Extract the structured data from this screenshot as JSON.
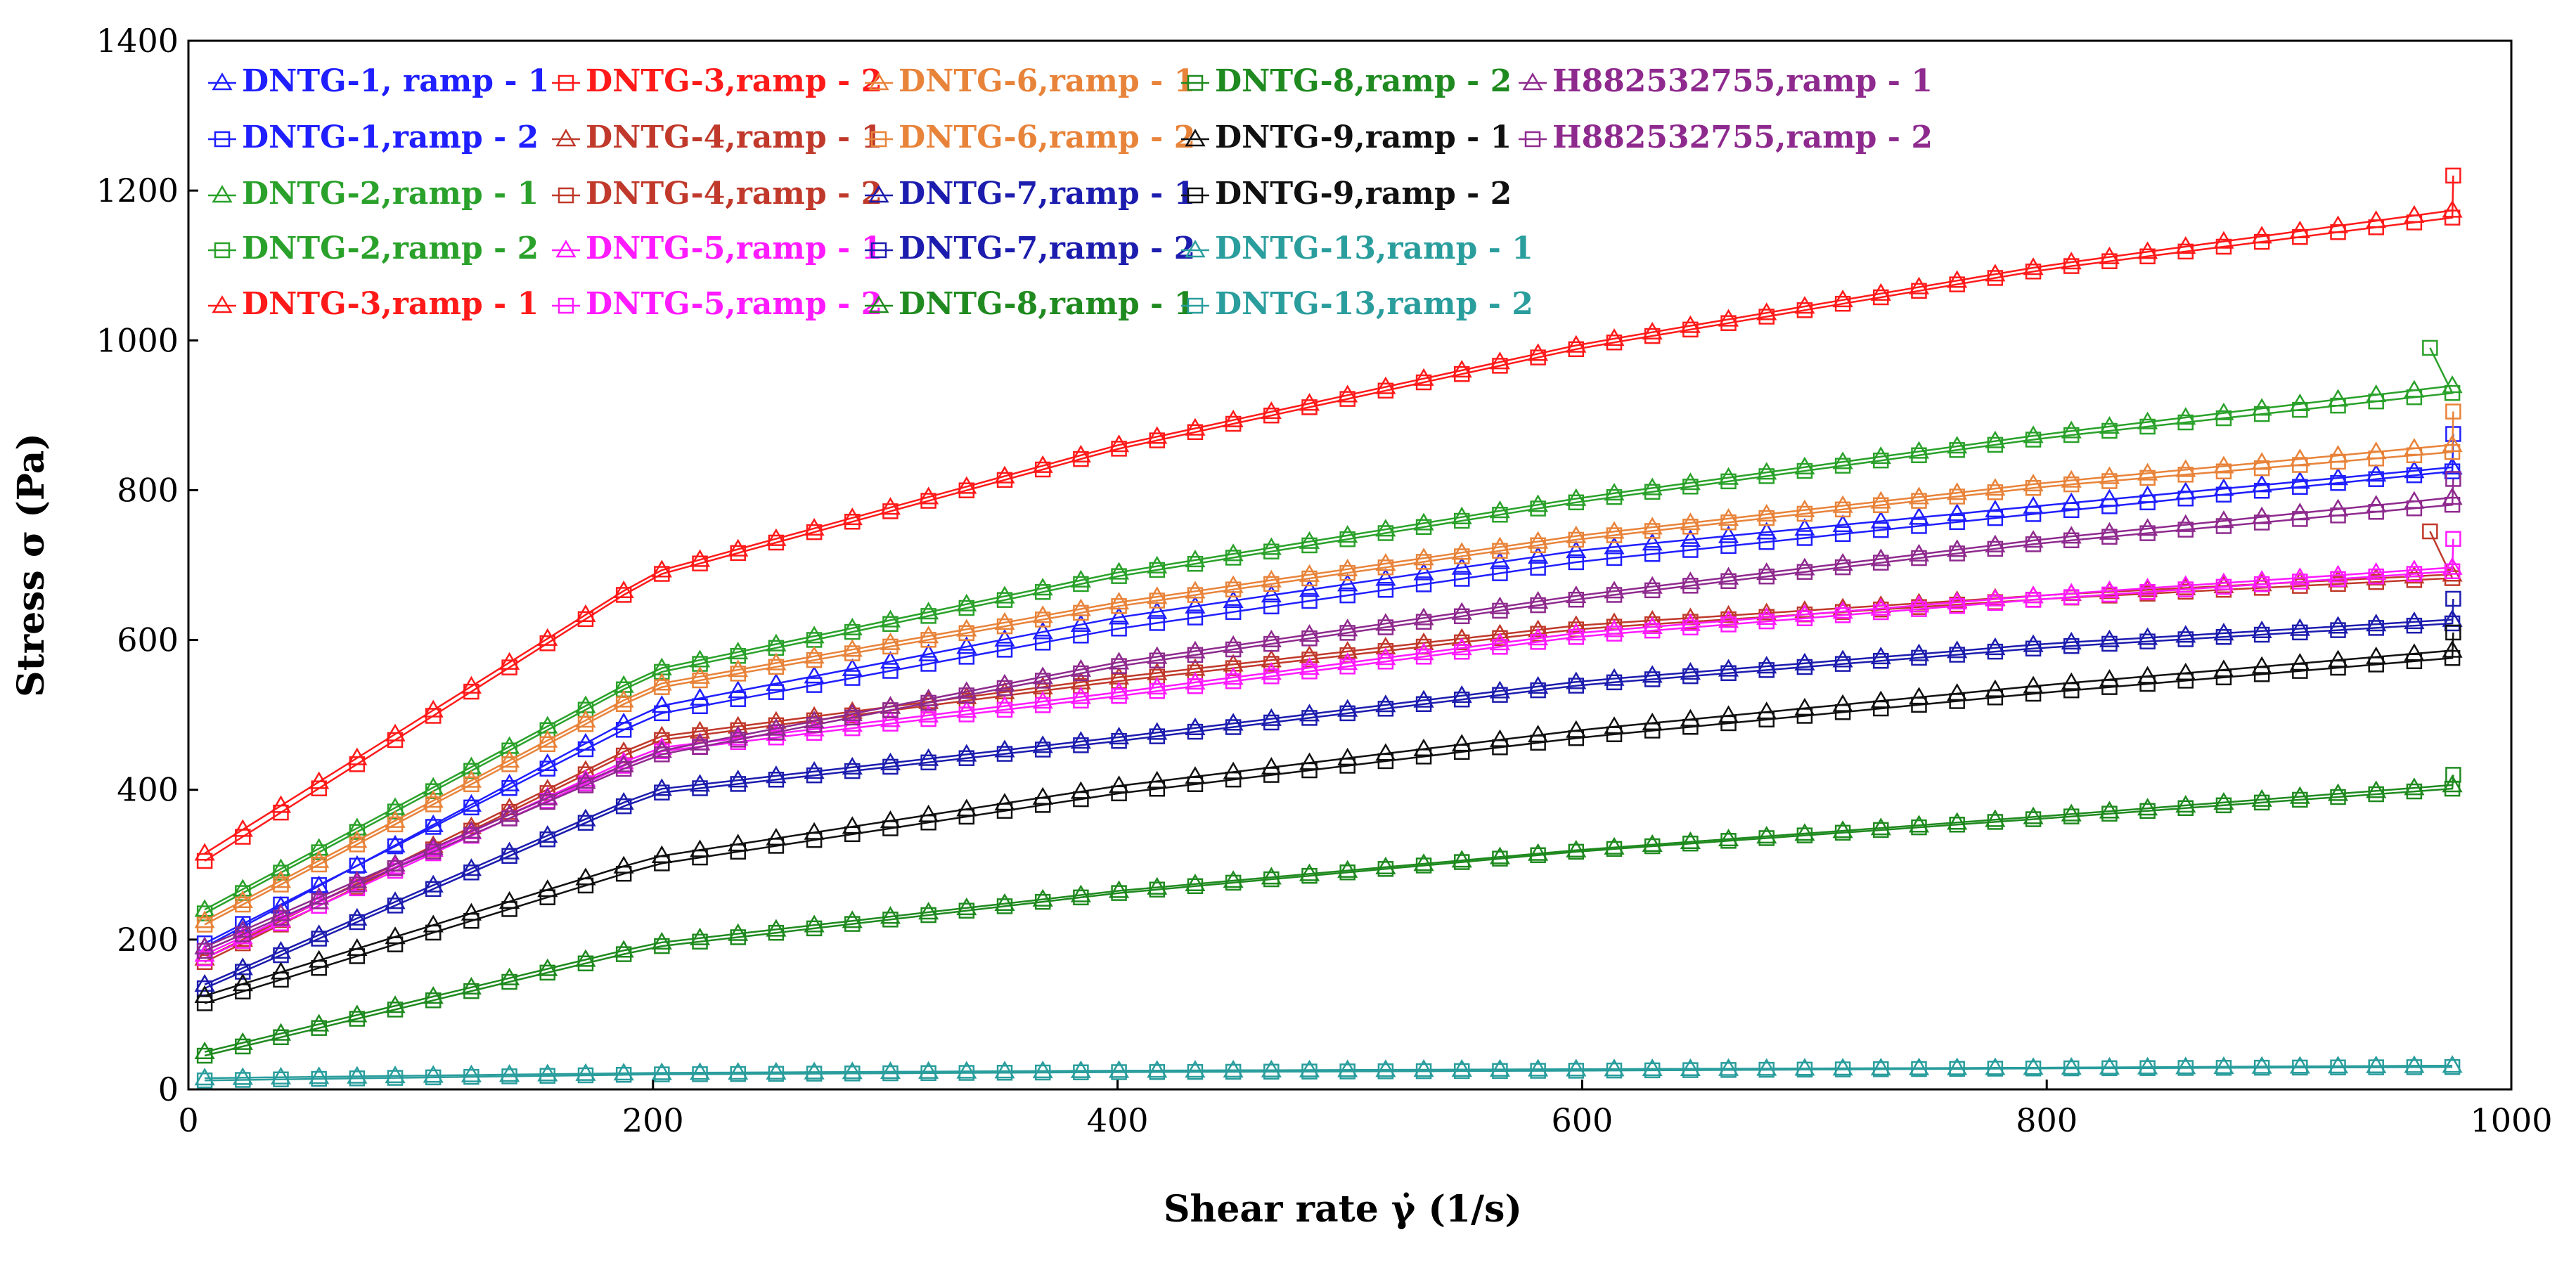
{
  "chart_data": {
    "type": "line",
    "title": "",
    "xlabel": "Shear rate γ̇  (1/s)",
    "ylabel": "Stress σ  (Pa)",
    "xlim": [
      0,
      1000
    ],
    "ylim": [
      0,
      1400
    ],
    "xticks": [
      0,
      200,
      400,
      600,
      800,
      1000
    ],
    "yticks": [
      0,
      200,
      400,
      600,
      800,
      1000,
      1200,
      1400
    ],
    "grid": false,
    "legend_position": "top-left",
    "x": [
      7,
      200,
      400,
      600,
      800,
      990
    ],
    "series": [
      {
        "name": "DNTG-1, ramp - 1",
        "color": "#1f1fff",
        "marker": "triangle",
        "values": [
          190,
          510,
          630,
          720,
          780,
          835
        ]
      },
      {
        "name": "DNTG-1,ramp - 2",
        "color": "#1f1fff",
        "marker": "square",
        "values": [
          195,
          500,
          615,
          705,
          770,
          830
        ],
        "end_point": [
          975,
          875
        ]
      },
      {
        "name": "DNTG-2,ramp - 1",
        "color": "#2aa12a",
        "marker": "triangle",
        "values": [
          240,
          560,
          690,
          790,
          875,
          945
        ]
      },
      {
        "name": "DNTG-2,ramp - 2",
        "color": "#2aa12a",
        "marker": "square",
        "values": [
          235,
          555,
          685,
          785,
          870,
          935
        ],
        "end_point": [
          965,
          990
        ]
      },
      {
        "name": "DNTG-3,ramp - 1",
        "color": "#ff1a1a",
        "marker": "triangle",
        "values": [
          315,
          690,
          860,
          995,
          1100,
          1180
        ]
      },
      {
        "name": "DNTG-3,ramp - 2",
        "color": "#ff1a1a",
        "marker": "square",
        "values": [
          305,
          685,
          855,
          990,
          1095,
          1170
        ],
        "end_point": [
          975,
          1220
        ]
      },
      {
        "name": "DNTG-4,ramp - 1",
        "color": "#c0392b",
        "marker": "triangle",
        "values": [
          175,
          470,
          550,
          620,
          660,
          690
        ]
      },
      {
        "name": "DNTG-4,ramp - 2",
        "color": "#c0392b",
        "marker": "square",
        "values": [
          170,
          465,
          545,
          615,
          655,
          685
        ],
        "end_point": [
          965,
          745
        ]
      },
      {
        "name": "DNTG-5,ramp - 1",
        "color": "#ff1aff",
        "marker": "triangle",
        "values": [
          180,
          455,
          530,
          610,
          660,
          700
        ]
      },
      {
        "name": "DNTG-5,ramp - 2",
        "color": "#ff1aff",
        "marker": "square",
        "values": [
          175,
          450,
          525,
          605,
          655,
          695
        ],
        "end_point": [
          975,
          735
        ]
      },
      {
        "name": "DNTG-6,ramp - 1",
        "color": "#e8833a",
        "marker": "triangle",
        "values": [
          225,
          540,
          650,
          740,
          810,
          865
        ]
      },
      {
        "name": "DNTG-6,ramp - 2",
        "color": "#e8833a",
        "marker": "square",
        "values": [
          220,
          535,
          645,
          735,
          805,
          855
        ],
        "end_point": [
          975,
          905
        ]
      },
      {
        "name": "DNTG-7,ramp - 1",
        "color": "#1c1cae",
        "marker": "triangle",
        "values": [
          140,
          400,
          470,
          545,
          595,
          630
        ]
      },
      {
        "name": "DNTG-7,ramp - 2",
        "color": "#1c1cae",
        "marker": "square",
        "values": [
          135,
          395,
          465,
          540,
          590,
          625
        ],
        "end_point": [
          975,
          655
        ]
      },
      {
        "name": "DNTG-8,ramp - 1",
        "color": "#1f8a1f",
        "marker": "triangle",
        "values": [
          50,
          195,
          265,
          320,
          365,
          410
        ]
      },
      {
        "name": "DNTG-8,ramp - 2",
        "color": "#1f8a1f",
        "marker": "square",
        "values": [
          45,
          190,
          262,
          318,
          362,
          405
        ],
        "end_point": [
          975,
          420
        ]
      },
      {
        "name": "DNTG-9,ramp - 1",
        "color": "#111111",
        "marker": "triangle",
        "values": [
          125,
          310,
          405,
          480,
          540,
          590
        ]
      },
      {
        "name": "DNTG-9,ramp - 2",
        "color": "#111111",
        "marker": "square",
        "values": [
          115,
          300,
          395,
          470,
          530,
          580
        ],
        "end_point": [
          975,
          610
        ]
      },
      {
        "name": "DNTG-13,ramp - 1",
        "color": "#2a9d9d",
        "marker": "triangle",
        "values": [
          15,
          22,
          25,
          27,
          29,
          32
        ]
      },
      {
        "name": "DNTG-13,ramp - 2",
        "color": "#2a9d9d",
        "marker": "square",
        "values": [
          12,
          20,
          23,
          25,
          28,
          30
        ]
      },
      {
        "name": "H882532755,ramp - 1",
        "color": "#8e2a8e",
        "marker": "triangle",
        "values": [
          190,
          450,
          570,
          660,
          735,
          795
        ]
      },
      {
        "name": "H882532755,ramp - 2",
        "color": "#8e2a8e",
        "marker": "square",
        "values": [
          185,
          445,
          565,
          655,
          730,
          785
        ],
        "end_point": [
          975,
          815
        ]
      }
    ],
    "legend_layout": [
      [
        "DNTG-1, ramp - 1",
        "DNTG-1,ramp - 2",
        "DNTG-2,ramp - 1",
        "DNTG-2,ramp - 2",
        "DNTG-3,ramp - 1"
      ],
      [
        "DNTG-3,ramp - 2",
        "DNTG-4,ramp - 1",
        "DNTG-4,ramp - 2",
        "DNTG-5,ramp - 1",
        "DNTG-5,ramp - 2"
      ],
      [
        "DNTG-6,ramp - 1",
        "DNTG-6,ramp - 2",
        "DNTG-7,ramp - 1",
        "DNTG-7,ramp - 2",
        "DNTG-8,ramp - 1"
      ],
      [
        "DNTG-8,ramp - 2",
        "DNTG-9,ramp - 1",
        "DNTG-9,ramp - 2",
        "DNTG-13,ramp - 1",
        "DNTG-13,ramp - 2"
      ],
      [
        "H882532755,ramp - 1",
        "H882532755,ramp - 2"
      ]
    ]
  }
}
